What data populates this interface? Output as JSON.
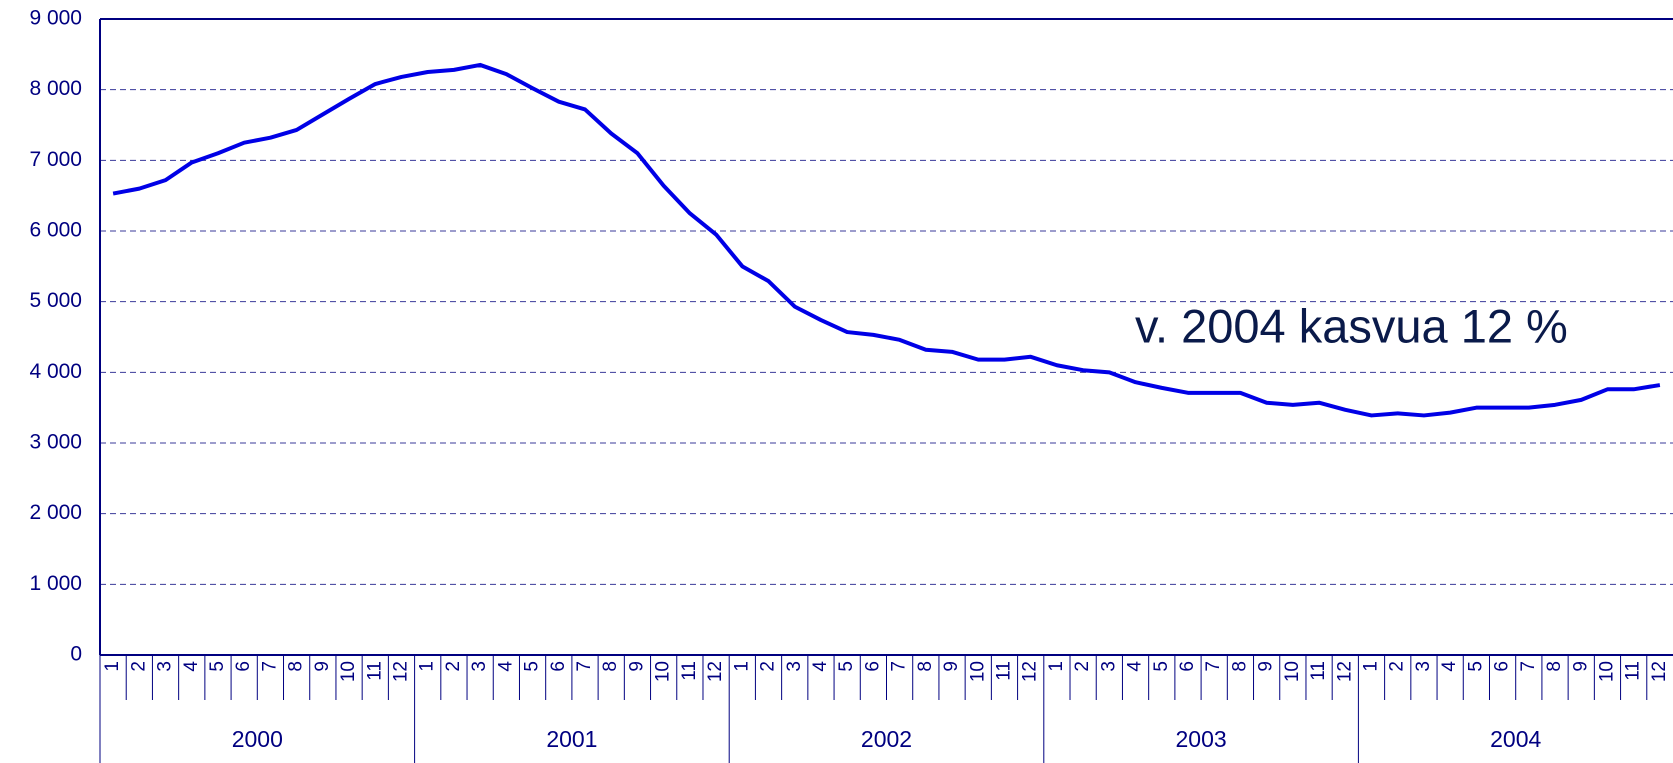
{
  "chart_data": {
    "type": "line",
    "annotation": "v. 2004 kasvua 12 %",
    "categories": [
      "1",
      "2",
      "3",
      "4",
      "5",
      "6",
      "7",
      "8",
      "9",
      "10",
      "11",
      "12",
      "1",
      "2",
      "3",
      "4",
      "5",
      "6",
      "7",
      "8",
      "9",
      "10",
      "11",
      "12",
      "1",
      "2",
      "3",
      "4",
      "5",
      "6",
      "7",
      "8",
      "9",
      "10",
      "11",
      "12",
      "1",
      "2",
      "3",
      "4",
      "5",
      "6",
      "7",
      "8",
      "9",
      "10",
      "11",
      "12",
      "1",
      "2",
      "3",
      "4",
      "5",
      "6",
      "7",
      "8",
      "9",
      "10",
      "11",
      "12"
    ],
    "years": [
      "2000",
      "2001",
      "2002",
      "2003",
      "2004"
    ],
    "series": [
      {
        "color": "#0000e6",
        "values": [
          6530,
          6600,
          6720,
          6970,
          7100,
          7250,
          7320,
          7430,
          7650,
          7870,
          8080,
          8180,
          8250,
          8280,
          8350,
          8220,
          8020,
          7830,
          7720,
          7380,
          7100,
          6640,
          6250,
          5950,
          5500,
          5290,
          4930,
          4740,
          4570,
          4530,
          4460,
          4320,
          4290,
          4180,
          4180,
          4220,
          4100,
          4030,
          4000,
          3860,
          3780,
          3710,
          3710,
          3710,
          3570,
          3540,
          3570,
          3470,
          3390,
          3420,
          3390,
          3430,
          3500,
          3500,
          3500,
          3540,
          3610,
          3760,
          3760,
          3820
        ]
      }
    ],
    "ylim": [
      0,
      9000
    ],
    "yticks": [
      {
        "value": 0,
        "label": "0"
      },
      {
        "value": 1000,
        "label": "1 000"
      },
      {
        "value": 2000,
        "label": "2 000"
      },
      {
        "value": 3000,
        "label": "3 000"
      },
      {
        "value": 4000,
        "label": "4 000"
      },
      {
        "value": 5000,
        "label": "5 000"
      },
      {
        "value": 6000,
        "label": "6 000"
      },
      {
        "value": 7000,
        "label": "7 000"
      },
      {
        "value": 8000,
        "label": "8 000"
      },
      {
        "value": 9000,
        "label": "9 000"
      }
    ],
    "grid": true
  }
}
